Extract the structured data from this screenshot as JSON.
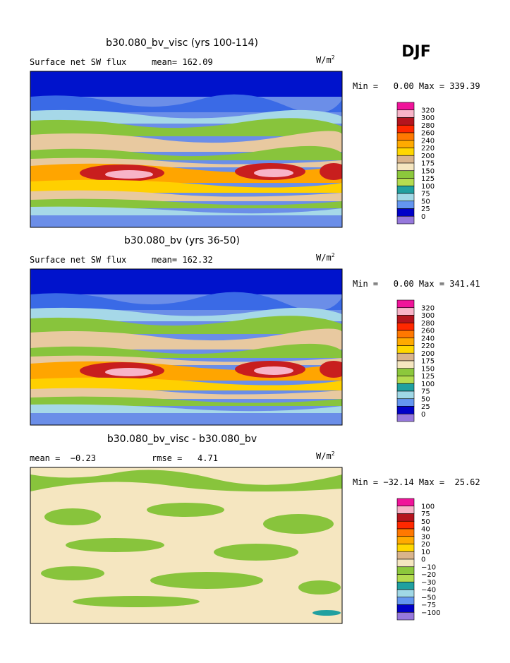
{
  "season": "DJF",
  "colorbar_colors": [
    "#f0149a",
    "#f8b4c8",
    "#b4141e",
    "#ff2800",
    "#ff7800",
    "#ffaa00",
    "#ffd700",
    "#d9b48c",
    "#f5e6c0",
    "#8cc83c",
    "#b4dc50",
    "#20a0a0",
    "#a0d8e6",
    "#6496f0",
    "#0000c8",
    "#9678dc"
  ],
  "panels": [
    {
      "title": "b30.080_bv_visc (yrs 100-114)",
      "left": "Surface net SW flux",
      "right": "mean= 162.09",
      "units": {
        "base": "W/m",
        "sup": "2"
      },
      "range": "Min =   0.00 Max = 339.39",
      "colorbar_labels": [
        "320",
        "300",
        "280",
        "260",
        "240",
        "220",
        "200",
        "175",
        "150",
        "125",
        "100",
        "75",
        "50",
        "25",
        "0"
      ]
    },
    {
      "title": "b30.080_bv (yrs 36-50)",
      "left": "Surface net SW flux",
      "right": "mean= 162.32",
      "units": {
        "base": "W/m",
        "sup": "2"
      },
      "range": "Min =   0.00 Max = 341.41",
      "colorbar_labels": [
        "320",
        "300",
        "280",
        "260",
        "240",
        "220",
        "200",
        "175",
        "150",
        "125",
        "100",
        "75",
        "50",
        "25",
        "0"
      ]
    },
    {
      "title": "b30.080_bv_visc - b30.080_bv",
      "left": "mean =  −0.23",
      "right": "rmse =   4.71",
      "units": {
        "base": "W/m",
        "sup": "2"
      },
      "range": "Min = −32.14 Max =  25.62",
      "colorbar_labels": [
        "100",
        "75",
        "50",
        "40",
        "30",
        "20",
        "10",
        "0",
        "−10",
        "−20",
        "−30",
        "−40",
        "−50",
        "−75",
        "−100"
      ]
    }
  ]
}
